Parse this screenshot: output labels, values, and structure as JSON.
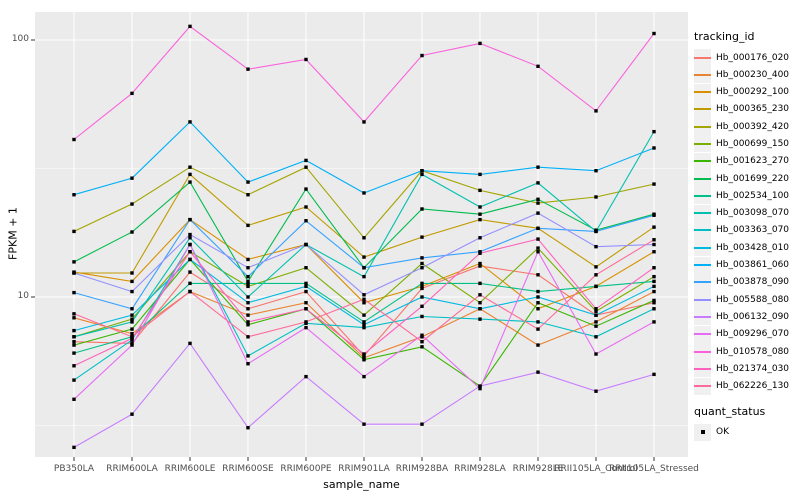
{
  "figure": {
    "background": "#ffffff",
    "panel_background": "#ebebeb",
    "grid_color": "#ffffff",
    "axis_text_color": "#4d4d4d",
    "tick_mark_color": "#333333",
    "point_color": "#000000"
  },
  "chart_data": {
    "type": "line",
    "title": "",
    "xlabel": "sample_name",
    "ylabel": "FPKM + 1",
    "y_scale": "log10",
    "ylim": [
      2.4,
      128
    ],
    "y_ticks": [
      100,
      10
    ],
    "y_tick_labels": [
      "100",
      "10"
    ],
    "y_minor_gridlines": [
      31.62,
      3.162
    ],
    "grid": true,
    "legend_position": "right",
    "legend_title": "tracking_id",
    "point_marker": "square",
    "categories": [
      "PB350LA",
      "RRIM600LA",
      "RRIM600LE",
      "RRIM600SE",
      "RRIM600PE",
      "RRIM901LA",
      "RRIM928BA",
      "RRIM928LA",
      "RRIM928LE",
      "RRII105LA_Control",
      "RRII105LA_Stressed"
    ],
    "series": [
      {
        "name": "Hb_000176_020",
        "color": "#F8766D",
        "values": [
          6.7,
          6.6,
          12.5,
          9.0,
          10.5,
          5.9,
          10.8,
          13.2,
          12.2,
          8.5,
          9.5
        ]
      },
      {
        "name": "Hb_000230_400",
        "color": "#EA8331",
        "values": [
          8.3,
          7.2,
          10.5,
          8.5,
          9.5,
          5.8,
          7.0,
          9.0,
          6.5,
          8.0,
          10.5
        ]
      },
      {
        "name": "Hb_000292_100",
        "color": "#D89000",
        "values": [
          12.5,
          11.5,
          20,
          14,
          16,
          9.5,
          11,
          13.5,
          9.0,
          11,
          15
        ]
      },
      {
        "name": "Hb_000365_230",
        "color": "#C09B00",
        "values": [
          12.4,
          12.4,
          30,
          19,
          22.4,
          14.3,
          17.1,
          20,
          18.5,
          13.1,
          18.7
        ]
      },
      {
        "name": "Hb_000392_420",
        "color": "#A3A500",
        "values": [
          18,
          23,
          32,
          25,
          32,
          17,
          31,
          26,
          23.2,
          24.5,
          27.5
        ]
      },
      {
        "name": "Hb_000699_150",
        "color": "#7CAE00",
        "values": [
          7.0,
          8.2,
          15,
          11,
          13,
          8.5,
          13.5,
          9.5,
          15.5,
          8.8,
          12
        ]
      },
      {
        "name": "Hb_001623_270",
        "color": "#39B600",
        "values": [
          6.5,
          7.5,
          14,
          7.8,
          9.0,
          5.7,
          6.4,
          4.5,
          9.5,
          7.7,
          9.7
        ]
      },
      {
        "name": "Hb_001699_220",
        "color": "#00BB4E",
        "values": [
          13.7,
          17.9,
          28,
          11.5,
          26.3,
          13,
          22,
          21,
          24,
          18.2,
          21
        ]
      },
      {
        "name": "Hb_002534_100",
        "color": "#00C087",
        "values": [
          6.05,
          7.0,
          11.3,
          11.3,
          11.3,
          8.0,
          11.3,
          11.3,
          10.5,
          11,
          11.5
        ]
      },
      {
        "name": "Hb_003098_070",
        "color": "#00C0AF",
        "values": [
          7.0,
          8.0,
          17,
          10,
          16,
          12,
          30,
          22.4,
          27.8,
          18,
          44
        ]
      },
      {
        "name": "Hb_003363_070",
        "color": "#00BFC4",
        "values": [
          4.75,
          6.8,
          16,
          5.9,
          7.9,
          7.6,
          8.4,
          8.2,
          8.0,
          7.0,
          9.0
        ]
      },
      {
        "name": "Hb_003428_010",
        "color": "#00BAE0",
        "values": [
          7.4,
          8.5,
          14,
          9.5,
          11,
          7.8,
          10,
          9.0,
          10,
          8.5,
          11
        ]
      },
      {
        "name": "Hb_003861_060",
        "color": "#00B0F6",
        "values": [
          25,
          29,
          48,
          28,
          34,
          25.4,
          31,
          30,
          32,
          31,
          38
        ]
      },
      {
        "name": "Hb_003878_090",
        "color": "#35A2FF",
        "values": [
          10.4,
          9.0,
          20,
          12,
          19.8,
          13,
          14.2,
          15,
          18.5,
          18,
          20.8
        ]
      },
      {
        "name": "Hb_005588_080",
        "color": "#9590FF",
        "values": [
          12.4,
          10.5,
          17.5,
          13,
          16,
          10.2,
          13,
          17,
          21.2,
          15.7,
          16
        ]
      },
      {
        "name": "Hb_006132_090",
        "color": "#C77CFF",
        "values": [
          2.6,
          3.5,
          6.6,
          3.1,
          4.9,
          3.2,
          3.2,
          4.5,
          5.1,
          4.3,
          5.0
        ]
      },
      {
        "name": "Hb_009296_070",
        "color": "#E76BF3",
        "values": [
          4.0,
          6.5,
          16,
          5.5,
          7.6,
          4.9,
          7.1,
          4.4,
          15,
          6.0,
          8.0
        ]
      },
      {
        "name": "Hb_010578_080",
        "color": "#FA62DB",
        "values": [
          41,
          62,
          113,
          77,
          84,
          48,
          87,
          97,
          79,
          53,
          106
        ]
      },
      {
        "name": "Hb_021374_030",
        "color": "#FF62BC",
        "values": [
          5.4,
          6.9,
          15,
          8.0,
          9.0,
          6.0,
          9.2,
          14.8,
          16.8,
          9.0,
          13
        ]
      },
      {
        "name": "Hb_062226_130",
        "color": "#FF6A98",
        "values": [
          8.6,
          7.0,
          10.5,
          7.0,
          8.0,
          9.8,
          6.7,
          10.2,
          7.5,
          12.2,
          16.7
        ]
      }
    ],
    "legend2_title": "quant_status",
    "legend2_items": [
      {
        "label": "OK"
      }
    ]
  }
}
